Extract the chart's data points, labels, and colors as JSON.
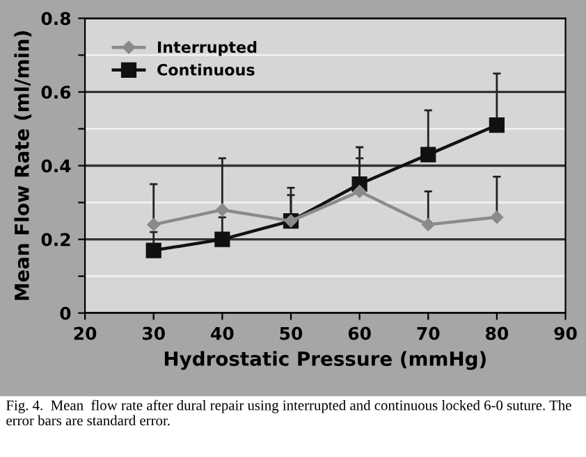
{
  "chart_data": {
    "type": "line",
    "xlabel": "Hydrostatic Pressure (mmHg)",
    "ylabel": "Mean Flow Rate (ml/min)",
    "x": [
      30,
      40,
      50,
      60,
      70,
      80
    ],
    "series": [
      {
        "name": "Interrupted",
        "color": "#8a8a8a",
        "marker": "diamond",
        "values": [
          0.24,
          0.28,
          0.25,
          0.33,
          0.24,
          0.26
        ],
        "errors": [
          [
            0.24,
            0.35
          ],
          [
            0.28,
            0.42
          ],
          [
            0.25,
            0.34
          ],
          [
            0.33,
            0.42
          ],
          [
            0.24,
            0.33
          ],
          [
            0.26,
            0.37
          ]
        ]
      },
      {
        "name": "Continuous",
        "color": "#111111",
        "marker": "square",
        "values": [
          0.17,
          0.2,
          0.25,
          0.35,
          0.43,
          0.51
        ],
        "errors": [
          [
            0.17,
            0.22
          ],
          [
            0.2,
            0.26
          ],
          [
            0.25,
            0.32
          ],
          [
            0.35,
            0.45
          ],
          [
            0.43,
            0.55
          ],
          [
            0.51,
            0.65
          ]
        ]
      }
    ],
    "xlim": [
      20,
      90
    ],
    "xticks": [
      20,
      30,
      40,
      50,
      60,
      70,
      80,
      90
    ],
    "ylim": [
      0,
      0.8
    ],
    "yticks": [
      {
        "value": 0,
        "label": "0"
      },
      {
        "value": 0.1,
        "label": null
      },
      {
        "value": 0.2,
        "label": "0.2"
      },
      {
        "value": 0.3,
        "label": null
      },
      {
        "value": 0.4,
        "label": "0.4"
      },
      {
        "value": 0.5,
        "label": null
      },
      {
        "value": 0.6,
        "label": "0.6"
      },
      {
        "value": 0.7,
        "label": null
      },
      {
        "value": 0.8,
        "label": "0.8"
      }
    ],
    "grid": "y",
    "legend": "top left",
    "line_style": "solid",
    "annotations": [
      "Fig. 4.  Mean  flow rate after dural repair using interrupted and continuous locked 6-0 suture. The error bars are standard error."
    ]
  }
}
